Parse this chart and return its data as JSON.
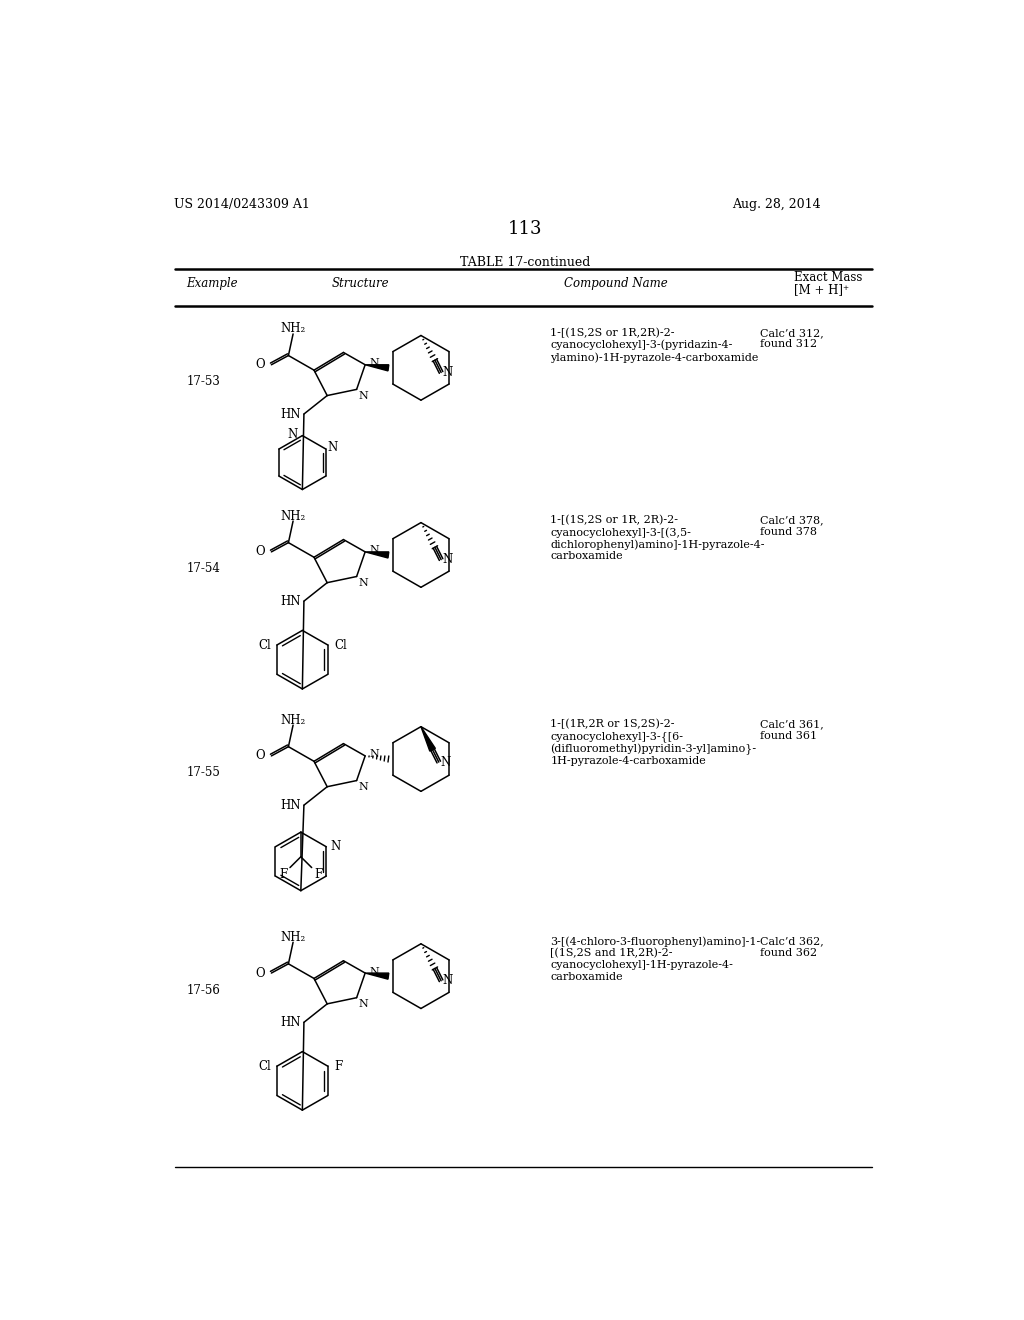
{
  "page_number": "113",
  "patent_number": "US 2014/0243309 A1",
  "patent_date": "Aug. 28, 2014",
  "table_title": "TABLE 17-continued",
  "col_headers": [
    "Example",
    "Structure",
    "Compound Name",
    "Exact Mass\n[M + H]⁺"
  ],
  "background_color": "#ffffff",
  "text_color": "#000000",
  "rows": [
    {
      "example": "17-53",
      "compound_name": "1-[(1S,2S or 1R,2R)-2-\ncyanocyclohexyl]-3-(pyridazin-4-\nylamino)-1H-pyrazole-4-carboxamide",
      "exact_mass": "Calc’d 312,\nfound 312"
    },
    {
      "example": "17-54",
      "compound_name": "1-[(1S,2S or 1R, 2R)-2-\ncyanocyclohexyl]-3-[(3,5-\ndichlorophenyl)amino]-1H-pyrazole-4-\ncarboxamide",
      "exact_mass": "Calc’d 378,\nfound 378"
    },
    {
      "example": "17-55",
      "compound_name": "1-[(1R,2R or 1S,2S)-2-\ncyanocyclohexyl]-3-{[6-\n(difluoromethyl)pyridin-3-yl]amino}-\n1H-pyrazole-4-carboxamide",
      "exact_mass": "Calc’d 361,\nfound 361"
    },
    {
      "example": "17-56",
      "compound_name": "3-[(4-chloro-3-fluorophenyl)amino]-1-\n[(1S,2S and 1R,2R)-2-\ncyanocyclohexyl]-1H-pyrazole-4-\ncarboxamide",
      "exact_mass": "Calc’d 362,\nfound 362"
    }
  ]
}
